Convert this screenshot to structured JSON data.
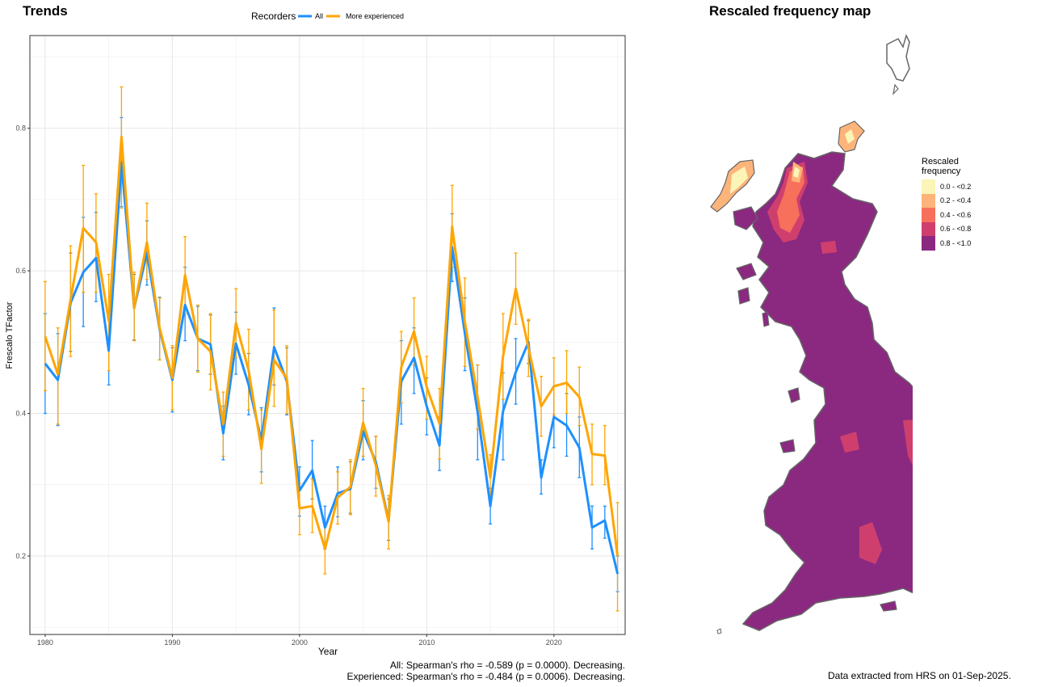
{
  "left_panel": {
    "title": "Trends",
    "caption_all": "All: Spearman's rho = -0.589 (p = 0.0000). Decreasing.",
    "caption_experienced": "Experienced: Spearman's rho = -0.484 (p = 0.0006). Decreasing."
  },
  "right_panel": {
    "title": "Rescaled frequency map",
    "legend_title_line1": "Rescaled",
    "legend_title_line2": "frequency",
    "legend": [
      {
        "label": "0.0 - <0.2",
        "color": "#FBF5B7"
      },
      {
        "label": "0.2 - <0.4",
        "color": "#FDB47A"
      },
      {
        "label": "0.4 - <0.6",
        "color": "#F7705C"
      },
      {
        "label": "0.6 - <0.8",
        "color": "#CF3F6E"
      },
      {
        "label": "0.8 - <1.0",
        "color": "#8B2981"
      }
    ],
    "footer": "Data extracted from HRS on 01-Sep-2025."
  },
  "chart_data": {
    "type": "line",
    "legend_title": "Recorders",
    "legend_position": "top",
    "xlabel": "Year",
    "ylabel": "Frescalo TFactor",
    "xlim": [
      1978.8,
      2025.6
    ],
    "ylim": [
      0.09,
      0.93
    ],
    "x_ticks": [
      1980,
      1990,
      2000,
      2010,
      2020
    ],
    "y_ticks": [
      0.2,
      0.4,
      0.6,
      0.8
    ],
    "x_tick_labels": [
      "1980",
      "1990",
      "2000",
      "2010",
      "2020"
    ],
    "y_tick_labels": [
      "0.2",
      "0.4",
      "0.6",
      "0.8"
    ],
    "grid": true,
    "x": [
      1980,
      1981,
      1982,
      1983,
      1984,
      1985,
      1986,
      1987,
      1988,
      1989,
      1990,
      1991,
      1992,
      1993,
      1994,
      1995,
      1996,
      1997,
      1998,
      1999,
      2000,
      2001,
      2002,
      2003,
      2004,
      2005,
      2006,
      2007,
      2008,
      2009,
      2010,
      2011,
      2012,
      2013,
      2014,
      2015,
      2016,
      2017,
      2018,
      2019,
      2020,
      2021,
      2022,
      2023,
      2024,
      2025
    ],
    "series": [
      {
        "name": "All",
        "color": "#1E90FF",
        "values": [
          0.47,
          0.447,
          0.555,
          0.598,
          0.618,
          0.488,
          0.752,
          0.548,
          0.625,
          0.518,
          0.447,
          0.552,
          0.505,
          0.497,
          0.372,
          0.498,
          0.44,
          0.362,
          0.493,
          0.445,
          0.292,
          0.32,
          0.24,
          0.288,
          0.294,
          0.375,
          0.332,
          0.25,
          0.445,
          0.478,
          0.41,
          0.355,
          0.633,
          0.512,
          0.402,
          0.27,
          0.403,
          0.458,
          0.5,
          0.31,
          0.395,
          0.383,
          0.352,
          0.24,
          0.25,
          0.175
        ],
        "err_low": [
          0.4,
          0.383,
          0.487,
          0.522,
          0.557,
          0.44,
          0.69,
          0.503,
          0.58,
          0.475,
          0.402,
          0.502,
          0.46,
          0.455,
          0.335,
          0.455,
          0.398,
          0.318,
          0.44,
          0.398,
          0.256,
          0.28,
          0.21,
          0.255,
          0.26,
          0.335,
          0.295,
          0.222,
          0.385,
          0.428,
          0.37,
          0.32,
          0.585,
          0.46,
          0.335,
          0.245,
          0.335,
          0.413,
          0.47,
          0.287,
          0.352,
          0.34,
          0.31,
          0.21,
          0.225,
          0.15
        ],
        "err_high": [
          0.54,
          0.512,
          0.625,
          0.675,
          0.682,
          0.538,
          0.815,
          0.595,
          0.67,
          0.563,
          0.492,
          0.605,
          0.55,
          0.538,
          0.41,
          0.542,
          0.484,
          0.408,
          0.548,
          0.492,
          0.325,
          0.362,
          0.27,
          0.325,
          0.332,
          0.418,
          0.368,
          0.28,
          0.502,
          0.52,
          0.45,
          0.395,
          0.68,
          0.562,
          0.468,
          0.295,
          0.457,
          0.505,
          0.53,
          0.335,
          0.438,
          0.428,
          0.395,
          0.27,
          0.27,
          0.2
        ]
      },
      {
        "name": "More experienced",
        "color": "#FFA500",
        "values": [
          0.508,
          0.455,
          0.56,
          0.66,
          0.64,
          0.53,
          0.788,
          0.548,
          0.64,
          0.52,
          0.45,
          0.594,
          0.505,
          0.487,
          0.385,
          0.527,
          0.46,
          0.35,
          0.475,
          0.449,
          0.267,
          0.27,
          0.21,
          0.282,
          0.297,
          0.387,
          0.327,
          0.248,
          0.465,
          0.515,
          0.437,
          0.386,
          0.662,
          0.528,
          0.423,
          0.31,
          0.48,
          0.575,
          0.492,
          0.41,
          0.438,
          0.443,
          0.423,
          0.343,
          0.341,
          0.2
        ],
        "err_low": [
          0.432,
          0.385,
          0.48,
          0.57,
          0.57,
          0.46,
          0.688,
          0.502,
          0.588,
          0.475,
          0.405,
          0.54,
          0.458,
          0.433,
          0.34,
          0.478,
          0.405,
          0.302,
          0.41,
          0.4,
          0.23,
          0.233,
          0.175,
          0.245,
          0.258,
          0.34,
          0.284,
          0.21,
          0.415,
          0.468,
          0.392,
          0.336,
          0.605,
          0.466,
          0.378,
          0.278,
          0.42,
          0.525,
          0.452,
          0.368,
          0.398,
          0.4,
          0.383,
          0.3,
          0.3,
          0.123
        ],
        "err_high": [
          0.585,
          0.52,
          0.635,
          0.748,
          0.708,
          0.595,
          0.858,
          0.598,
          0.695,
          0.562,
          0.495,
          0.648,
          0.552,
          0.54,
          0.43,
          0.575,
          0.518,
          0.405,
          0.545,
          0.495,
          0.302,
          0.308,
          0.245,
          0.318,
          0.335,
          0.435,
          0.368,
          0.285,
          0.515,
          0.562,
          0.48,
          0.435,
          0.72,
          0.59,
          0.468,
          0.342,
          0.54,
          0.625,
          0.532,
          0.452,
          0.478,
          0.488,
          0.465,
          0.385,
          0.383,
          0.275
        ]
      }
    ]
  }
}
